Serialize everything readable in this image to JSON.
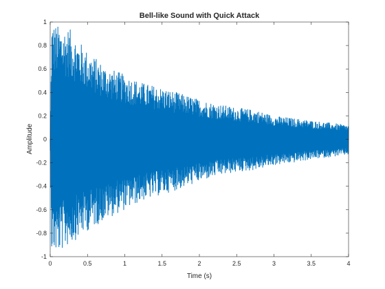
{
  "chart_data": {
    "type": "line",
    "title": "Bell-like Sound with Quick Attack",
    "xlabel": "Time (s)",
    "ylabel": "Amplitude",
    "xlim": [
      0,
      4
    ],
    "ylim": [
      -1,
      1
    ],
    "grid": false,
    "line_color": "#0072BD",
    "x_ticks": [
      0,
      0.5,
      1,
      1.5,
      2,
      2.5,
      3,
      3.5,
      4
    ],
    "x_tick_labels": [
      "0",
      "0.5",
      "1",
      "1.5",
      "2",
      "2.5",
      "3",
      "3.5",
      "4"
    ],
    "y_ticks": [
      -1,
      -0.8,
      -0.6,
      -0.4,
      -0.2,
      0,
      0.2,
      0.4,
      0.6,
      0.8,
      1
    ],
    "y_tick_labels": [
      "-1",
      "-0.8",
      "-0.6",
      "-0.4",
      "-0.2",
      "0",
      "0.2",
      "0.4",
      "0.6",
      "0.8",
      "1"
    ],
    "series": [
      {
        "envelope_points": {
          "t": [
            0,
            0.02,
            0.1,
            0.25,
            0.5,
            0.75,
            1.0,
            1.25,
            1.5,
            1.75,
            2.0,
            2.25,
            2.5,
            2.75,
            3.0,
            3.25,
            3.5,
            3.75,
            4.0
          ],
          "upper": [
            0.0,
            1.0,
            0.97,
            0.95,
            0.75,
            0.62,
            0.55,
            0.48,
            0.44,
            0.39,
            0.34,
            0.3,
            0.27,
            0.25,
            0.2,
            0.18,
            0.16,
            0.14,
            0.12
          ],
          "lower": [
            0.0,
            -0.96,
            -0.98,
            -0.9,
            -0.78,
            -0.68,
            -0.6,
            -0.52,
            -0.47,
            -0.42,
            -0.36,
            -0.31,
            -0.28,
            -0.26,
            -0.22,
            -0.2,
            -0.17,
            -0.15,
            -0.13
          ]
        }
      }
    ]
  }
}
